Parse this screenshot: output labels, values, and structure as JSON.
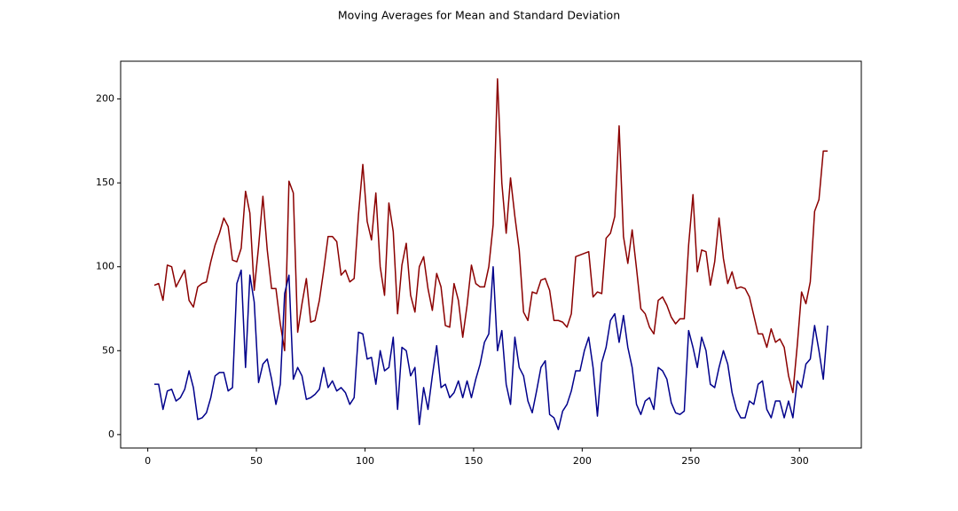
{
  "chart_data": {
    "type": "line",
    "title": "Moving Averages for Mean and Standard Deviation",
    "x": [
      3,
      5,
      7,
      9,
      11,
      13,
      15,
      17,
      19,
      21,
      23,
      25,
      27,
      29,
      31,
      33,
      35,
      37,
      39,
      41,
      43,
      45,
      47,
      49,
      51,
      53,
      55,
      57,
      59,
      61,
      63,
      65,
      67,
      69,
      71,
      73,
      75,
      77,
      79,
      81,
      83,
      85,
      87,
      89,
      91,
      93,
      95,
      97,
      99,
      101,
      103,
      105,
      107,
      109,
      111,
      113,
      115,
      117,
      119,
      121,
      123,
      125,
      127,
      129,
      131,
      133,
      135,
      137,
      139,
      141,
      143,
      145,
      147,
      149,
      151,
      153,
      155,
      157,
      159,
      161,
      163,
      165,
      167,
      169,
      171,
      173,
      175,
      177,
      179,
      181,
      183,
      185,
      187,
      189,
      191,
      193,
      195,
      197,
      199,
      201,
      203,
      205,
      207,
      209,
      211,
      213,
      215,
      217,
      219,
      221,
      223,
      225,
      227,
      229,
      231,
      233,
      235,
      237,
      239,
      241,
      243,
      245,
      247,
      249,
      251,
      253,
      255,
      257,
      259,
      261,
      263,
      265,
      267,
      269,
      271,
      273,
      275,
      277,
      279,
      281,
      283,
      285,
      287,
      289,
      291,
      293,
      295,
      297,
      299,
      301,
      303,
      305,
      307,
      309,
      311,
      313
    ],
    "series": [
      {
        "color": "#8b0000",
        "values": [
          89,
          90,
          80,
          101,
          100,
          88,
          93,
          98,
          80,
          76,
          88,
          90,
          91,
          103,
          113,
          120,
          129,
          124,
          104,
          103,
          111,
          145,
          132,
          86,
          112,
          142,
          110,
          87,
          87,
          66,
          50,
          151,
          144,
          61,
          78,
          93,
          67,
          68,
          80,
          98,
          118,
          118,
          115,
          95,
          98,
          91,
          93,
          131,
          161,
          127,
          116,
          144,
          100,
          83,
          138,
          121,
          72,
          101,
          114,
          83,
          73,
          100,
          106,
          87,
          74,
          96,
          88,
          65,
          64,
          90,
          80,
          58,
          77,
          101,
          90,
          88,
          88,
          100,
          125,
          212,
          150,
          120,
          153,
          130,
          110,
          73,
          68,
          85,
          84,
          92,
          93,
          86,
          68,
          68,
          67,
          64,
          72,
          106,
          107,
          108,
          109,
          82,
          85,
          84,
          117,
          120,
          130,
          184,
          118,
          102,
          122,
          99,
          75,
          72,
          64,
          60,
          80,
          82,
          77,
          70,
          66,
          69,
          69,
          113,
          143,
          97,
          110,
          109,
          89,
          103,
          129,
          105,
          90,
          97,
          87,
          88,
          87,
          82,
          71,
          60,
          60,
          52,
          63,
          55,
          57,
          52,
          35,
          25,
          53,
          85,
          78,
          91,
          133,
          140,
          169,
          169
        ]
      },
      {
        "color": "#00008b",
        "values": [
          30,
          30,
          15,
          26,
          27,
          20,
          22,
          27,
          38,
          28,
          9,
          10,
          13,
          22,
          35,
          37,
          37,
          26,
          28,
          90,
          98,
          40,
          95,
          79,
          31,
          42,
          45,
          33,
          18,
          30,
          84,
          95,
          33,
          40,
          35,
          21,
          22,
          24,
          27,
          40,
          28,
          32,
          26,
          28,
          25,
          18,
          22,
          61,
          60,
          45,
          46,
          30,
          50,
          38,
          40,
          58,
          15,
          52,
          50,
          35,
          40,
          6,
          28,
          15,
          35,
          53,
          28,
          30,
          22,
          25,
          32,
          22,
          32,
          22,
          33,
          42,
          55,
          60,
          100,
          50,
          62,
          30,
          18,
          58,
          40,
          35,
          20,
          13,
          26,
          40,
          44,
          12,
          10,
          3,
          14,
          18,
          26,
          38,
          38,
          50,
          58,
          40,
          11,
          43,
          52,
          68,
          72,
          55,
          71,
          52,
          40,
          18,
          12,
          20,
          22,
          15,
          40,
          38,
          33,
          19,
          13,
          12,
          14,
          62,
          52,
          40,
          58,
          50,
          30,
          28,
          40,
          50,
          42,
          25,
          15,
          10,
          10,
          20,
          18,
          30,
          32,
          15,
          10,
          20,
          20,
          10,
          20,
          10,
          32,
          28,
          42,
          45,
          65,
          50,
          33,
          65
        ]
      }
    ],
    "xlim": [
      -12.5,
      328.5
    ],
    "ylim": [
      -8,
      222.5
    ],
    "xticks": [
      0,
      50,
      100,
      150,
      200,
      250,
      300
    ],
    "yticks": [
      0,
      50,
      100,
      150,
      200
    ],
    "grid": false
  }
}
